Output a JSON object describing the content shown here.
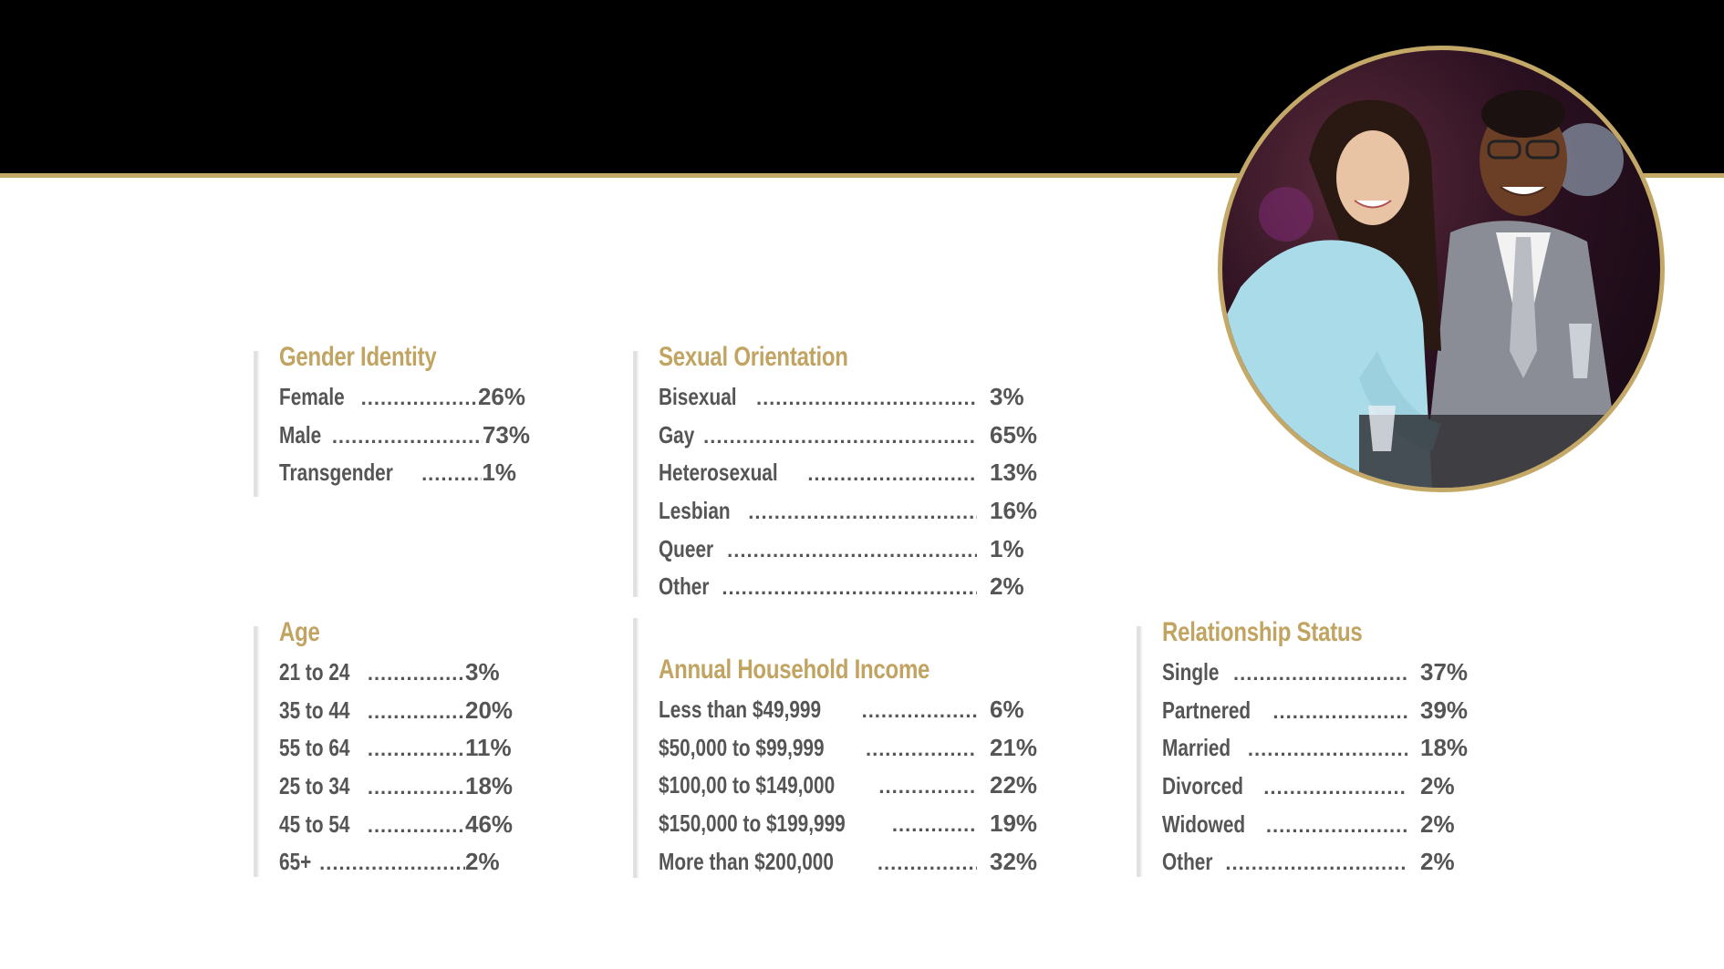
{
  "colors": {
    "gold": "#c1a461",
    "band": "#000000",
    "text": "#555555"
  },
  "photo": {
    "description_icon": "photo-icon"
  },
  "gender": {
    "title": "Gender Identity",
    "items": [
      {
        "label": "Female",
        "value": "26%"
      },
      {
        "label": "Male",
        "value": "73%"
      },
      {
        "label": "Transgender",
        "value": "1%"
      }
    ]
  },
  "orientation": {
    "title": "Sexual Orientation",
    "items": [
      {
        "label": "Bisexual",
        "value": "3%"
      },
      {
        "label": "Gay",
        "value": "65%"
      },
      {
        "label": "Heterosexual",
        "value": "13%"
      },
      {
        "label": "Lesbian",
        "value": "16%"
      },
      {
        "label": "Queer",
        "value": "1%"
      },
      {
        "label": "Other",
        "value": "2%"
      }
    ]
  },
  "age": {
    "title": "Age",
    "items": [
      {
        "label": "21 to 24",
        "value": "3%"
      },
      {
        "label": "35 to 44",
        "value": "20%"
      },
      {
        "label": "55 to 64",
        "value": "11%"
      },
      {
        "label": "25 to 34",
        "value": "18%"
      },
      {
        "label": "45 to 54",
        "value": "46%"
      },
      {
        "label": "65+",
        "value": "2%"
      }
    ]
  },
  "income": {
    "title": "Annual Household Income",
    "items": [
      {
        "label": "Less than $49,999",
        "value": "6%"
      },
      {
        "label": "$50,000 to $99,999",
        "value": "21%"
      },
      {
        "label": "$100,00 to $149,000",
        "value": "22%"
      },
      {
        "label": "$150,000 to $199,999",
        "value": "19%"
      },
      {
        "label": "More than $200,000",
        "value": "32%"
      }
    ]
  },
  "relationship": {
    "title": "Relationship Status",
    "items": [
      {
        "label": "Single",
        "value": "37%"
      },
      {
        "label": "Partnered",
        "value": "39%"
      },
      {
        "label": "Married",
        "value": "18%"
      },
      {
        "label": "Divorced",
        "value": "2%"
      },
      {
        "label": "Widowed",
        "value": "2%"
      },
      {
        "label": "Other",
        "value": "2%"
      }
    ]
  }
}
